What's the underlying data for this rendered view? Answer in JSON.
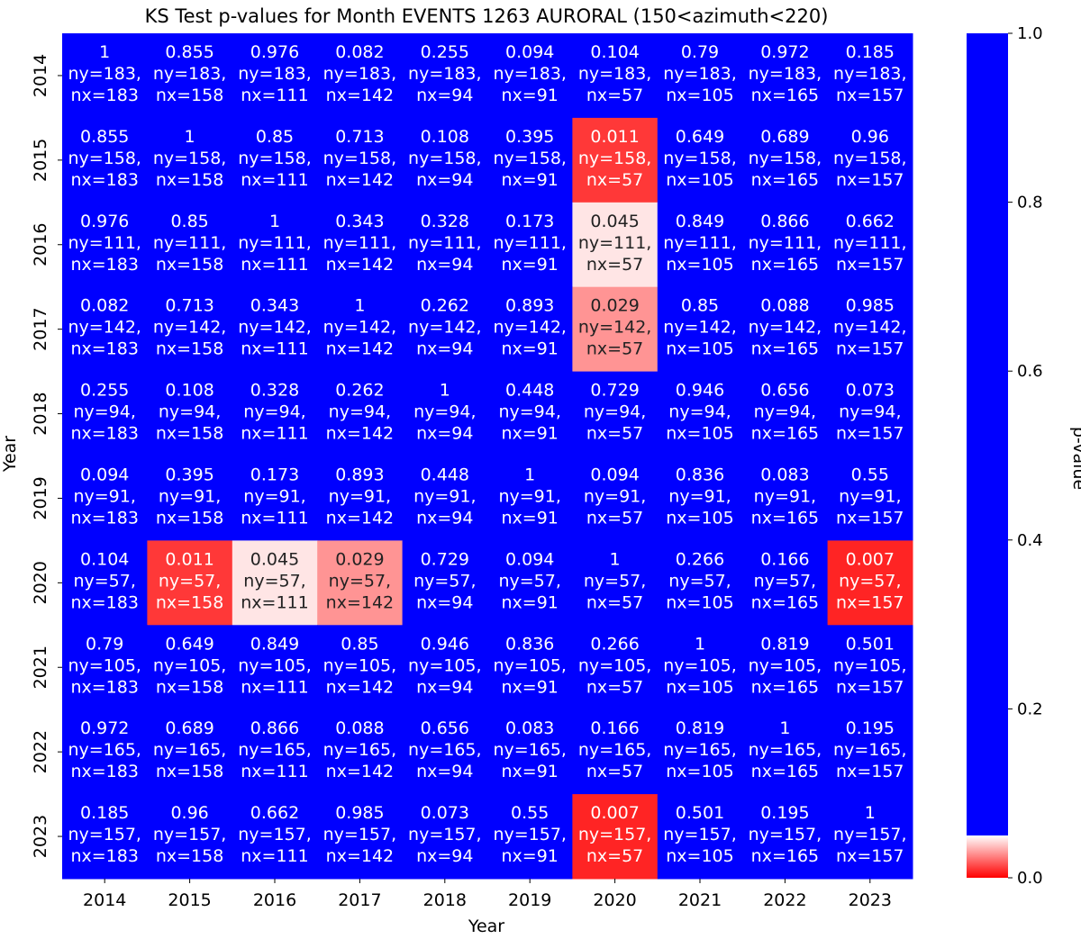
{
  "chart_data": {
    "type": "heatmap",
    "title": "KS Test p-values for Month EVENTS 1263 AURORAL (150<azimuth<220)",
    "xlabel": "Year",
    "ylabel": "Year",
    "x_categories": [
      "2014",
      "2015",
      "2016",
      "2017",
      "2018",
      "2019",
      "2020",
      "2021",
      "2022",
      "2023"
    ],
    "y_categories": [
      "2014",
      "2015",
      "2016",
      "2017",
      "2018",
      "2019",
      "2020",
      "2021",
      "2022",
      "2023"
    ],
    "counts": [
      183,
      158,
      111,
      142,
      94,
      91,
      57,
      105,
      165,
      157
    ],
    "values": [
      [
        1.0,
        0.855,
        0.976,
        0.082,
        0.255,
        0.094,
        0.104,
        0.79,
        0.972,
        0.185
      ],
      [
        0.855,
        1.0,
        0.85,
        0.713,
        0.108,
        0.395,
        0.011,
        0.649,
        0.689,
        0.96
      ],
      [
        0.976,
        0.85,
        1.0,
        0.343,
        0.328,
        0.173,
        0.045,
        0.849,
        0.866,
        0.662
      ],
      [
        0.082,
        0.713,
        0.343,
        1.0,
        0.262,
        0.893,
        0.029,
        0.85,
        0.088,
        0.985
      ],
      [
        0.255,
        0.108,
        0.328,
        0.262,
        1.0,
        0.448,
        0.729,
        0.946,
        0.656,
        0.073
      ],
      [
        0.094,
        0.395,
        0.173,
        0.893,
        0.448,
        1.0,
        0.094,
        0.836,
        0.083,
        0.55
      ],
      [
        0.104,
        0.011,
        0.045,
        0.029,
        0.729,
        0.094,
        1.0,
        0.266,
        0.166,
        0.007
      ],
      [
        0.79,
        0.649,
        0.849,
        0.85,
        0.946,
        0.836,
        0.266,
        1.0,
        0.819,
        0.501
      ],
      [
        0.972,
        0.689,
        0.866,
        0.088,
        0.656,
        0.083,
        0.166,
        0.819,
        1.0,
        0.195
      ],
      [
        0.185,
        0.96,
        0.662,
        0.985,
        0.073,
        0.55,
        0.007,
        0.501,
        0.195,
        1.0
      ]
    ],
    "colorbar": {
      "label": "p-value",
      "ticks": [
        "0.0",
        "0.2",
        "0.4",
        "0.6",
        "0.8",
        "1.0"
      ],
      "range": [
        0,
        1
      ],
      "threshold": 0.05
    },
    "colors": {
      "low": "#ff0000",
      "mid": "#ffffff",
      "high": "#0000ff"
    },
    "grid": false,
    "legend": "colorbar-right"
  }
}
